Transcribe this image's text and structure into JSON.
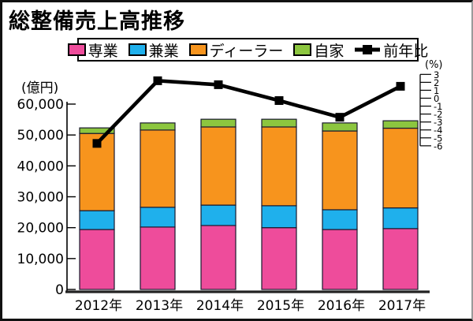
{
  "title": "総整備売上高推移",
  "legend": {
    "items": [
      {
        "label": "専業",
        "color": "#ee4c9b"
      },
      {
        "label": "兼業",
        "color": "#1fb0ec"
      },
      {
        "label": "ディーラー",
        "color": "#f7941d"
      },
      {
        "label": "自家",
        "color": "#8cc63f"
      },
      {
        "label": "前年比",
        "color": "#000000",
        "type": "line"
      }
    ]
  },
  "left_axis_unit": "(億円)",
  "right_axis_unit": "(%)",
  "chart_data": {
    "type": "bar",
    "subtype": "stacked-bar-with-line",
    "title": "総整備売上高推移",
    "categories": [
      "2012年",
      "2013年",
      "2014年",
      "2015年",
      "2016年",
      "2017年"
    ],
    "series": [
      {
        "name": "専業",
        "color": "#ee4c9b",
        "values": [
          19400,
          20200,
          20700,
          20000,
          19400,
          19700
        ]
      },
      {
        "name": "兼業",
        "color": "#1fb0ec",
        "values": [
          6100,
          6400,
          6600,
          7100,
          6400,
          6700
        ]
      },
      {
        "name": "ディーラー",
        "color": "#f7941d",
        "values": [
          25000,
          25000,
          25300,
          25500,
          25500,
          25800
        ]
      },
      {
        "name": "自家",
        "color": "#8cc63f",
        "values": [
          1800,
          2300,
          2500,
          2500,
          2600,
          2400
        ]
      }
    ],
    "totals": [
      52300,
      53900,
      55100,
      55100,
      53900,
      54600
    ],
    "line_series": {
      "name": "前年比",
      "axis": "right",
      "color": "#000000",
      "values": [
        -5.7,
        2.2,
        1.7,
        -0.3,
        -2.4,
        1.5
      ]
    },
    "left_axis": {
      "label": "(億円)",
      "min": 0,
      "max": 60000,
      "step": 10000,
      "ticks": [
        {
          "label": "60,000",
          "value": 60000
        },
        {
          "label": "50,000",
          "value": 50000
        },
        {
          "label": "40,000",
          "value": 40000
        },
        {
          "label": "30,000",
          "value": 30000
        },
        {
          "label": "20,000",
          "value": 20000
        },
        {
          "label": "10,000",
          "value": 10000
        },
        {
          "label": "0",
          "value": 0
        }
      ]
    },
    "right_axis": {
      "label": "(%)",
      "min": -6,
      "max": 3,
      "step": 1,
      "ticks": [
        {
          "label": "3",
          "value": 3
        },
        {
          "label": "2",
          "value": 2
        },
        {
          "label": "1",
          "value": 1
        },
        {
          "label": "0",
          "value": 0
        },
        {
          "label": "-1",
          "value": -1
        },
        {
          "label": "-2",
          "value": -2
        },
        {
          "label": "-3",
          "value": -3
        },
        {
          "label": "-4",
          "value": -4
        },
        {
          "label": "-5",
          "value": -5
        },
        {
          "label": "-6",
          "value": -6
        }
      ]
    },
    "grid": false,
    "legend_position": "top"
  }
}
